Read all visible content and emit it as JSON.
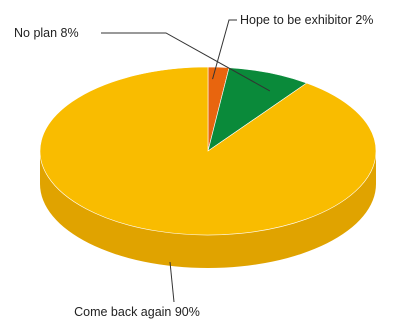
{
  "chart_data": {
    "type": "pie",
    "style": "3d",
    "title": "",
    "slices": [
      {
        "label": "Come back again",
        "value": 90,
        "value_label": "90%",
        "color": "#F9BC00",
        "side_color": "#E0A300"
      },
      {
        "label": "No plan",
        "value": 8,
        "value_label": "8%",
        "color": "#0A8A3A",
        "side_color": "#066A2C"
      },
      {
        "label": "Hope to be exhibitor",
        "value": 2,
        "value_label": "2%",
        "color": "#E8650E",
        "side_color": "#B84F0A"
      }
    ]
  }
}
